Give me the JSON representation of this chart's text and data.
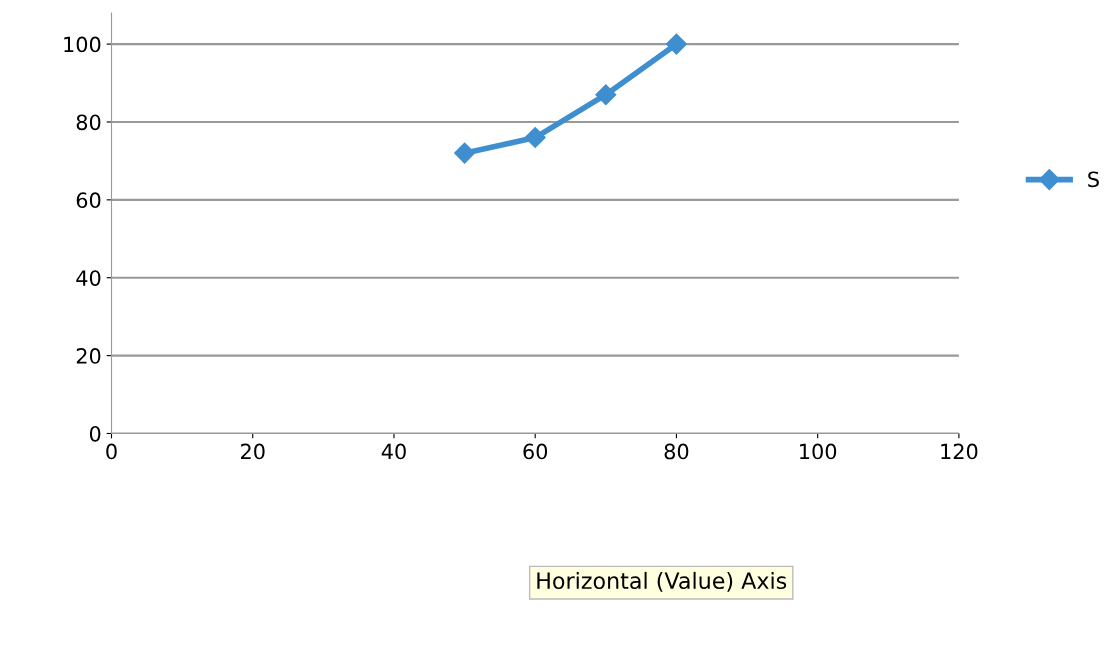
{
  "chart_data": {
    "type": "line",
    "series": [
      {
        "name": "S",
        "color": "#3f8fd0",
        "x": [
          50,
          60,
          70,
          80
        ],
        "values": [
          72,
          76,
          87,
          100
        ]
      }
    ],
    "line_style": "solid",
    "marker": "diamond",
    "xlim": [
      0,
      120
    ],
    "xticks": [
      0,
      20,
      40,
      60,
      80,
      100,
      120
    ],
    "ylim": [
      0,
      108
    ],
    "yticks": [
      0,
      20,
      40,
      60,
      80,
      100
    ],
    "grid": "y",
    "legend": "right",
    "annotations": [
      "Horizontal (Value) Axis"
    ]
  }
}
